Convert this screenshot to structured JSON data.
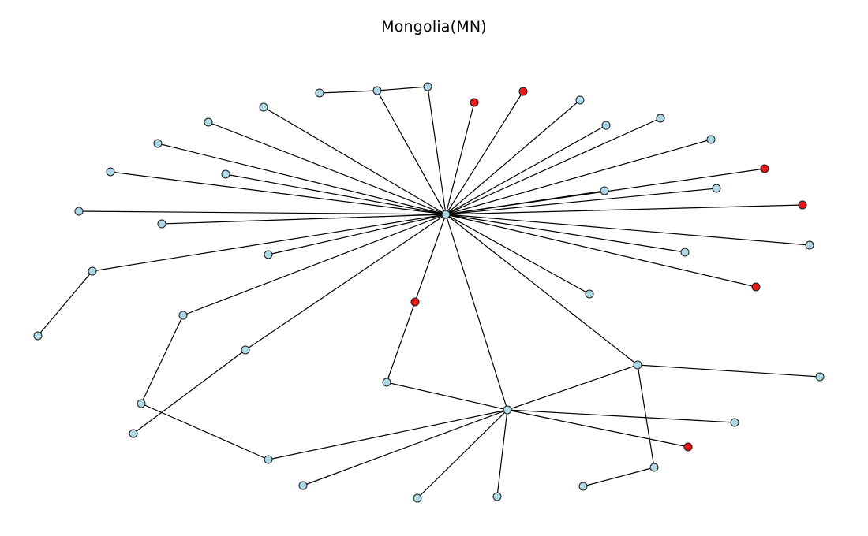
{
  "title": "Mongolia(MN)",
  "colors": {
    "normal_node": "#add8e6",
    "highlight_node": "#e8191a",
    "edge": "#000000"
  },
  "nodes": [
    {
      "id": "hub",
      "type": "normal"
    },
    {
      "id": "n1",
      "type": "normal"
    },
    {
      "id": "n2",
      "type": "normal"
    },
    {
      "id": "n3",
      "type": "normal"
    },
    {
      "id": "r1",
      "type": "highlight"
    },
    {
      "id": "r2",
      "type": "highlight"
    },
    {
      "id": "n4",
      "type": "normal"
    },
    {
      "id": "n5",
      "type": "normal"
    },
    {
      "id": "n6",
      "type": "normal"
    },
    {
      "id": "n7",
      "type": "normal"
    },
    {
      "id": "r3",
      "type": "highlight"
    },
    {
      "id": "n8",
      "type": "normal"
    },
    {
      "id": "n9",
      "type": "normal"
    },
    {
      "id": "r4",
      "type": "highlight"
    },
    {
      "id": "n10",
      "type": "normal"
    },
    {
      "id": "n11",
      "type": "normal"
    },
    {
      "id": "r5",
      "type": "highlight"
    },
    {
      "id": "n12",
      "type": "normal"
    },
    {
      "id": "n13",
      "type": "normal"
    },
    {
      "id": "n14",
      "type": "normal"
    },
    {
      "id": "n15",
      "type": "normal"
    },
    {
      "id": "n16",
      "type": "normal"
    },
    {
      "id": "n17",
      "type": "normal"
    },
    {
      "id": "n18",
      "type": "normal"
    },
    {
      "id": "n19",
      "type": "normal"
    },
    {
      "id": "n20",
      "type": "normal"
    },
    {
      "id": "n21",
      "type": "normal"
    },
    {
      "id": "r6",
      "type": "highlight"
    },
    {
      "id": "n22",
      "type": "normal"
    },
    {
      "id": "n23",
      "type": "normal"
    },
    {
      "id": "n24",
      "type": "normal"
    },
    {
      "id": "n25",
      "type": "normal"
    },
    {
      "id": "n26",
      "type": "normal"
    },
    {
      "id": "n27",
      "type": "normal"
    },
    {
      "id": "n28",
      "type": "normal"
    },
    {
      "id": "n29",
      "type": "normal"
    },
    {
      "id": "n30",
      "type": "normal"
    },
    {
      "id": "n31",
      "type": "normal"
    },
    {
      "id": "n32",
      "type": "normal"
    },
    {
      "id": "n33",
      "type": "normal"
    },
    {
      "id": "n34",
      "type": "normal"
    },
    {
      "id": "n35",
      "type": "normal"
    },
    {
      "id": "r7",
      "type": "highlight"
    },
    {
      "id": "n36",
      "type": "normal"
    },
    {
      "id": "n37",
      "type": "normal"
    },
    {
      "id": "n38",
      "type": "normal"
    }
  ],
  "edges": [
    [
      "hub",
      "n2"
    ],
    [
      "hub",
      "n3"
    ],
    [
      "hub",
      "r1"
    ],
    [
      "hub",
      "r2"
    ],
    [
      "hub",
      "n4"
    ],
    [
      "hub",
      "n5"
    ],
    [
      "hub",
      "n6"
    ],
    [
      "hub",
      "n7"
    ],
    [
      "hub",
      "n8"
    ],
    [
      "hub",
      "n9"
    ],
    [
      "hub",
      "r4"
    ],
    [
      "hub",
      "n10"
    ],
    [
      "hub",
      "n11"
    ],
    [
      "hub",
      "r5"
    ],
    [
      "hub",
      "n12"
    ],
    [
      "hub",
      "n13"
    ],
    [
      "hub",
      "r3"
    ],
    [
      "hub",
      "n14"
    ],
    [
      "hub",
      "n15"
    ],
    [
      "hub",
      "n16"
    ],
    [
      "hub",
      "n17"
    ],
    [
      "hub",
      "n18"
    ],
    [
      "hub",
      "n19"
    ],
    [
      "hub",
      "n20"
    ],
    [
      "hub",
      "n21"
    ],
    [
      "hub",
      "n23"
    ],
    [
      "hub",
      "n25"
    ],
    [
      "hub",
      "r6"
    ],
    [
      "hub",
      "n27"
    ],
    [
      "hub",
      "n28"
    ],
    [
      "hub",
      "n29"
    ],
    [
      "n1",
      "n2"
    ],
    [
      "n2",
      "n3"
    ],
    [
      "n20",
      "n22"
    ],
    [
      "n21",
      "n24"
    ],
    [
      "n24",
      "n26"
    ],
    [
      "n23",
      "n30"
    ],
    [
      "r6",
      "n27"
    ],
    [
      "n27",
      "n28"
    ],
    [
      "n27",
      "n31"
    ],
    [
      "n27",
      "n32"
    ],
    [
      "n27",
      "n33"
    ],
    [
      "n27",
      "n34"
    ],
    [
      "n27",
      "n35"
    ],
    [
      "n27",
      "r7"
    ],
    [
      "n27",
      "n26"
    ],
    [
      "n28",
      "n36"
    ],
    [
      "n28",
      "n37"
    ],
    [
      "n37",
      "n38"
    ]
  ]
}
